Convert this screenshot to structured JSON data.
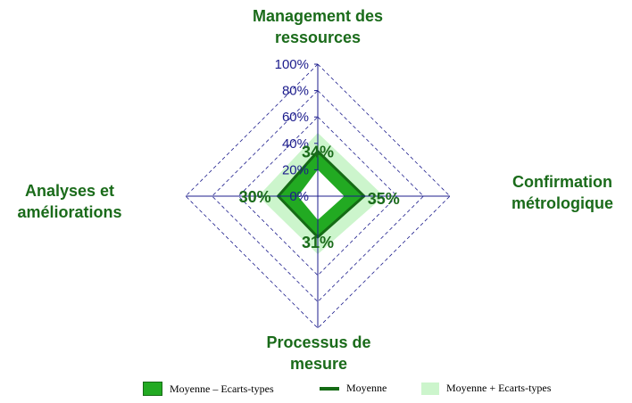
{
  "chart_data": {
    "type": "radar",
    "axes": [
      "Management des ressources",
      "Confirmation métrologique",
      "Processus de mesure",
      "Analyses et améliorations"
    ],
    "axis_labels_display": [
      "Management des\nressources",
      "Confirmation\nmétrologique",
      "Processus de\nmesure",
      "Analyses et\naméliorations"
    ],
    "tick_labels": [
      "0%",
      "20%",
      "40%",
      "60%",
      "80%",
      "100%"
    ],
    "rmax": 100,
    "series": [
      {
        "name": "Moyenne - Ecarts-types",
        "values": [
          20,
          20,
          18,
          15
        ],
        "color": "#22aa22"
      },
      {
        "name": "Moyenne",
        "values": [
          34,
          35,
          31,
          30
        ],
        "color": "#156b15"
      },
      {
        "name": "Moyenne + Ecarts-types",
        "values": [
          48,
          50,
          44,
          45
        ],
        "color": "#ccf5cc"
      }
    ],
    "value_labels": [
      "34%",
      "35%",
      "31%",
      "30%"
    ],
    "colors": {
      "axis": "#1c1c8c",
      "grid": "#1c1c8c",
      "label": "#1a6b1a"
    },
    "grid": true,
    "legend_position": "bottom"
  },
  "legend": {
    "items": [
      {
        "label": "Moyenne  –  Ecarts-types"
      },
      {
        "label": "Moyenne"
      },
      {
        "label": "Moyenne + Ecarts-types"
      }
    ]
  }
}
